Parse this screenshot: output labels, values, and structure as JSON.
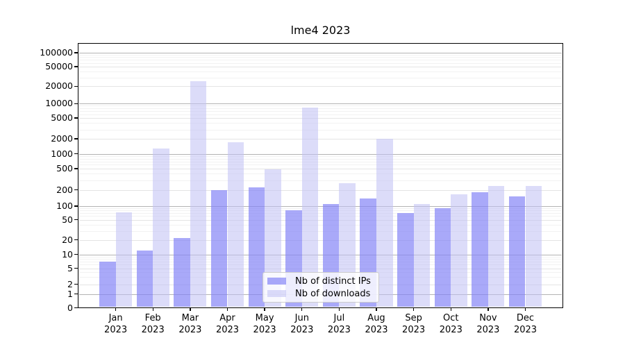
{
  "title": "lme4 2023",
  "chart_data": {
    "type": "bar",
    "title": "lme4 2023",
    "categories": [
      "Jan 2023",
      "Feb 2023",
      "Mar 2023",
      "Apr 2023",
      "May 2023",
      "Jun 2023",
      "Jul 2023",
      "Aug 2023",
      "Sep 2023",
      "Oct 2023",
      "Nov 2023",
      "Dec 2023"
    ],
    "series": [
      {
        "name": "Nb of distinct IPs",
        "color": "rgba(132,132,246,0.70)",
        "values": [
          7,
          12,
          22,
          200,
          220,
          82,
          110,
          140,
          70,
          90,
          180,
          150
        ]
      },
      {
        "name": "Nb of downloads",
        "color": "rgba(191,191,244,0.55)",
        "values": [
          73,
          1300,
          25000,
          1700,
          480,
          8200,
          270,
          2000,
          108,
          165,
          235,
          235
        ]
      }
    ],
    "xlabel": "",
    "ylabel": "",
    "yscale": "symlog",
    "ylim": [
      0,
      160000
    ],
    "y_ticks": [
      0,
      1,
      2,
      5,
      10,
      20,
      50,
      100,
      200,
      500,
      1000,
      2000,
      5000,
      10000,
      20000,
      50000,
      100000
    ],
    "y_major_ticks": [
      1,
      10,
      100,
      1000,
      10000,
      100000
    ],
    "grid": true,
    "legend_position": "inside lower-center"
  },
  "colors": {
    "grid_major": "#b3b3b3",
    "grid_mid": "#e4e4e4",
    "grid_minor": "#f2f2f2",
    "axis": "#000000",
    "background": "#ffffff",
    "legend_border": "#cccccc"
  }
}
